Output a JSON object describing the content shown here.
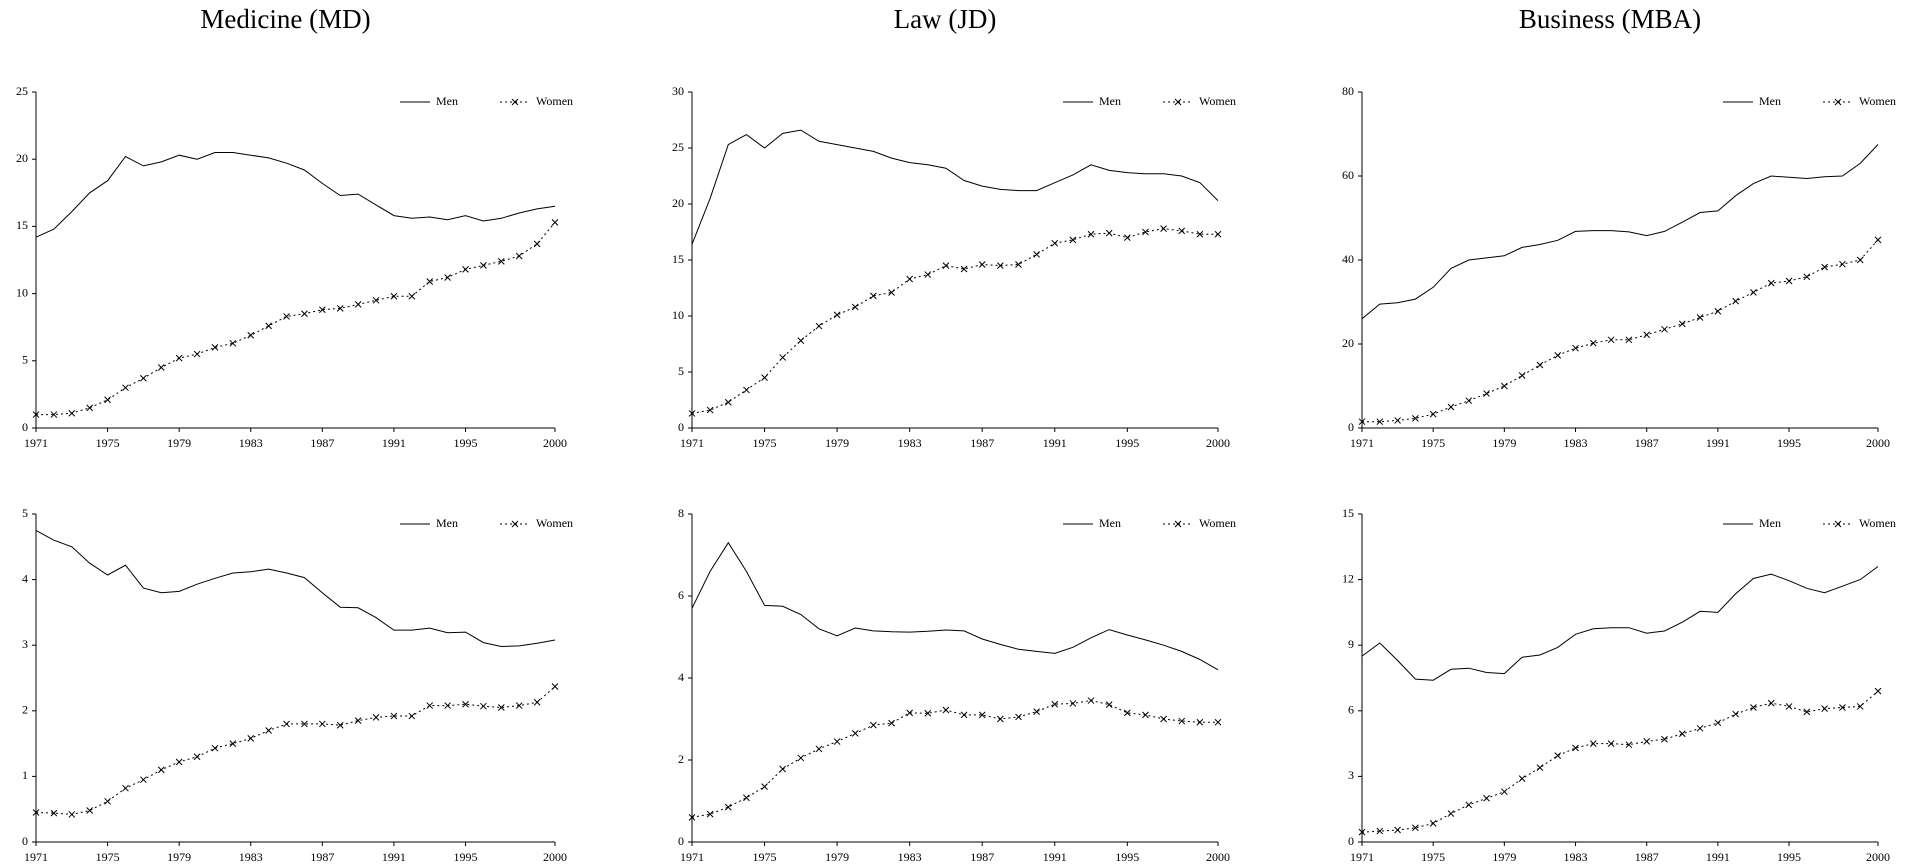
{
  "chart_data": [
    {
      "type": "line",
      "title": "Medicine (MD)",
      "x": [
        1971,
        1972,
        1973,
        1974,
        1975,
        1976,
        1977,
        1978,
        1979,
        1980,
        1981,
        1982,
        1983,
        1984,
        1985,
        1986,
        1987,
        1988,
        1989,
        1990,
        1991,
        1992,
        1993,
        1994,
        1995,
        1996,
        1997,
        1998,
        1999,
        2000
      ],
      "xlim": [
        1971,
        2000
      ],
      "xticks": [
        1971,
        1975,
        1979,
        1983,
        1987,
        1991,
        1995,
        2000
      ],
      "ylim": [
        0,
        25
      ],
      "yticks": [
        0,
        5,
        10,
        15,
        20,
        25
      ],
      "series": [
        {
          "name": "Men",
          "color": "#000000",
          "style": "solid",
          "values": [
            14.2,
            14.8,
            16.1,
            17.5,
            18.4,
            20.2,
            19.5,
            19.8,
            20.3,
            20.0,
            20.5,
            20.5,
            20.3,
            20.1,
            19.7,
            19.2,
            18.2,
            17.3,
            17.4,
            16.6,
            15.8,
            15.6,
            15.7,
            15.5,
            15.8,
            15.4,
            15.6,
            16.0,
            16.3,
            16.5
          ]
        },
        {
          "name": "Women",
          "color": "#000000",
          "style": "dotted",
          "marker": "x",
          "values": [
            1.0,
            1.0,
            1.1,
            1.5,
            2.1,
            3.0,
            3.7,
            4.5,
            5.2,
            5.5,
            6.0,
            6.3,
            6.9,
            7.6,
            8.3,
            8.5,
            8.8,
            8.9,
            9.2,
            9.5,
            9.8,
            9.8,
            10.9,
            11.2,
            11.8,
            12.1,
            12.4,
            12.8,
            13.7,
            15.3
          ]
        }
      ]
    },
    {
      "type": "line",
      "title": "Law (JD)",
      "x": [
        1971,
        1972,
        1973,
        1974,
        1975,
        1976,
        1977,
        1978,
        1979,
        1980,
        1981,
        1982,
        1983,
        1984,
        1985,
        1986,
        1987,
        1988,
        1989,
        1990,
        1991,
        1992,
        1993,
        1994,
        1995,
        1996,
        1997,
        1998,
        1999,
        2000
      ],
      "xlim": [
        1971,
        2000
      ],
      "xticks": [
        1971,
        1975,
        1979,
        1983,
        1987,
        1991,
        1995,
        2000
      ],
      "ylim": [
        0,
        30
      ],
      "yticks": [
        0,
        5,
        10,
        15,
        20,
        25,
        30
      ],
      "series": [
        {
          "name": "Men",
          "color": "#000000",
          "style": "solid",
          "values": [
            16.4,
            20.5,
            25.3,
            26.2,
            25.0,
            26.3,
            26.6,
            25.6,
            25.3,
            25.0,
            24.7,
            24.1,
            23.7,
            23.5,
            23.2,
            22.1,
            21.6,
            21.3,
            21.2,
            21.2,
            21.9,
            22.6,
            23.5,
            23.0,
            22.8,
            22.7,
            22.7,
            22.5,
            21.9,
            20.3
          ]
        },
        {
          "name": "Women",
          "color": "#000000",
          "style": "dotted",
          "marker": "x",
          "values": [
            1.3,
            1.6,
            2.3,
            3.4,
            4.5,
            6.3,
            7.8,
            9.1,
            10.1,
            10.8,
            11.8,
            12.1,
            13.3,
            13.7,
            14.5,
            14.2,
            14.6,
            14.5,
            14.6,
            15.5,
            16.5,
            16.8,
            17.3,
            17.4,
            17.0,
            17.5,
            17.8,
            17.6,
            17.3,
            17.3
          ]
        }
      ]
    },
    {
      "type": "line",
      "title": "Business (MBA)",
      "x": [
        1971,
        1972,
        1973,
        1974,
        1975,
        1976,
        1977,
        1978,
        1979,
        1980,
        1981,
        1982,
        1983,
        1984,
        1985,
        1986,
        1987,
        1988,
        1989,
        1990,
        1991,
        1992,
        1993,
        1994,
        1995,
        1996,
        1997,
        1998,
        1999,
        2000
      ],
      "xlim": [
        1971,
        2000
      ],
      "xticks": [
        1971,
        1975,
        1979,
        1983,
        1987,
        1991,
        1995,
        2000
      ],
      "ylim": [
        0,
        80
      ],
      "yticks": [
        0,
        20,
        40,
        60,
        80
      ],
      "series": [
        {
          "name": "Men",
          "color": "#000000",
          "style": "solid",
          "values": [
            26,
            29.5,
            29.8,
            30.7,
            33.5,
            38,
            40,
            40.5,
            41,
            43,
            43.7,
            44.7,
            46.8,
            47,
            47,
            46.7,
            45.8,
            46.8,
            49,
            51.3,
            51.7,
            55.3,
            58.2,
            60,
            59.7,
            59.4,
            59.8,
            60,
            63,
            67.5
          ]
        },
        {
          "name": "Women",
          "color": "#000000",
          "style": "dotted",
          "marker": "x",
          "values": [
            1.5,
            1.5,
            1.8,
            2.3,
            3.3,
            5,
            6.5,
            8.2,
            10,
            12.5,
            15,
            17.3,
            19,
            20.2,
            21,
            21,
            22.2,
            23.5,
            24.8,
            26.3,
            27.8,
            30.2,
            32.3,
            34.5,
            35,
            36,
            38.3,
            39,
            40,
            44.8
          ]
        }
      ]
    },
    {
      "type": "line",
      "x": [
        1971,
        1972,
        1973,
        1974,
        1975,
        1976,
        1977,
        1978,
        1979,
        1980,
        1981,
        1982,
        1983,
        1984,
        1985,
        1986,
        1987,
        1988,
        1989,
        1990,
        1991,
        1992,
        1993,
        1994,
        1995,
        1996,
        1997,
        1998,
        1999,
        2000
      ],
      "xlim": [
        1971,
        2000
      ],
      "xticks": [
        1971,
        1975,
        1979,
        1983,
        1987,
        1991,
        1995,
        2000
      ],
      "ylim": [
        0,
        5
      ],
      "yticks": [
        0,
        1,
        2,
        3,
        4,
        5
      ],
      "series": [
        {
          "name": "Men",
          "color": "#000000",
          "style": "solid",
          "values": [
            4.75,
            4.6,
            4.5,
            4.25,
            4.07,
            4.22,
            3.87,
            3.8,
            3.82,
            3.93,
            4.02,
            4.1,
            4.12,
            4.16,
            4.1,
            4.03,
            3.8,
            3.58,
            3.57,
            3.42,
            3.23,
            3.23,
            3.26,
            3.19,
            3.2,
            3.04,
            2.98,
            2.99,
            3.03,
            3.08
          ]
        },
        {
          "name": "Women",
          "color": "#000000",
          "style": "dotted",
          "marker": "x",
          "values": [
            0.45,
            0.44,
            0.42,
            0.48,
            0.62,
            0.82,
            0.95,
            1.1,
            1.22,
            1.3,
            1.43,
            1.5,
            1.58,
            1.7,
            1.8,
            1.8,
            1.8,
            1.78,
            1.85,
            1.9,
            1.92,
            1.92,
            2.08,
            2.08,
            2.1,
            2.07,
            2.05,
            2.08,
            2.13,
            2.37
          ]
        }
      ]
    },
    {
      "type": "line",
      "x": [
        1971,
        1972,
        1973,
        1974,
        1975,
        1976,
        1977,
        1978,
        1979,
        1980,
        1981,
        1982,
        1983,
        1984,
        1985,
        1986,
        1987,
        1988,
        1989,
        1990,
        1991,
        1992,
        1993,
        1994,
        1995,
        1996,
        1997,
        1998,
        1999,
        2000
      ],
      "xlim": [
        1971,
        2000
      ],
      "xticks": [
        1971,
        1975,
        1979,
        1983,
        1987,
        1991,
        1995,
        2000
      ],
      "ylim": [
        0,
        8
      ],
      "yticks": [
        0,
        2,
        4,
        6,
        8
      ],
      "series": [
        {
          "name": "Men",
          "color": "#000000",
          "style": "solid",
          "values": [
            5.7,
            6.6,
            7.3,
            6.6,
            5.77,
            5.75,
            5.55,
            5.2,
            5.03,
            5.22,
            5.15,
            5.13,
            5.12,
            5.14,
            5.17,
            5.15,
            4.95,
            4.82,
            4.7,
            4.65,
            4.6,
            4.75,
            4.98,
            5.18,
            5.05,
            4.93,
            4.8,
            4.65,
            4.45,
            4.2
          ]
        },
        {
          "name": "Women",
          "color": "#000000",
          "style": "dotted",
          "marker": "x",
          "values": [
            0.6,
            0.68,
            0.85,
            1.08,
            1.35,
            1.78,
            2.05,
            2.27,
            2.45,
            2.65,
            2.85,
            2.9,
            3.15,
            3.14,
            3.22,
            3.1,
            3.1,
            3.0,
            3.05,
            3.18,
            3.36,
            3.38,
            3.45,
            3.35,
            3.15,
            3.1,
            3.0,
            2.95,
            2.92,
            2.92
          ]
        }
      ]
    },
    {
      "type": "line",
      "x": [
        1971,
        1972,
        1973,
        1974,
        1975,
        1976,
        1977,
        1978,
        1979,
        1980,
        1981,
        1982,
        1983,
        1984,
        1985,
        1986,
        1987,
        1988,
        1989,
        1990,
        1991,
        1992,
        1993,
        1994,
        1995,
        1996,
        1997,
        1998,
        1999,
        2000
      ],
      "xlim": [
        1971,
        2000
      ],
      "xticks": [
        1971,
        1975,
        1979,
        1983,
        1987,
        1991,
        1995,
        2000
      ],
      "ylim": [
        0,
        15
      ],
      "yticks": [
        0,
        3,
        6,
        9,
        12,
        15
      ],
      "series": [
        {
          "name": "Men",
          "color": "#000000",
          "style": "solid",
          "values": [
            8.5,
            9.1,
            8.3,
            7.45,
            7.4,
            7.9,
            7.95,
            7.75,
            7.7,
            8.45,
            8.55,
            8.9,
            9.5,
            9.75,
            9.8,
            9.8,
            9.55,
            9.65,
            10.05,
            10.55,
            10.5,
            11.35,
            12.05,
            12.25,
            11.95,
            11.6,
            11.4,
            11.7,
            12.0,
            12.6
          ]
        },
        {
          "name": "Women",
          "color": "#000000",
          "style": "dotted",
          "marker": "x",
          "values": [
            0.45,
            0.5,
            0.55,
            0.65,
            0.85,
            1.3,
            1.7,
            2.0,
            2.3,
            2.9,
            3.4,
            3.95,
            4.3,
            4.5,
            4.5,
            4.45,
            4.6,
            4.7,
            4.95,
            5.2,
            5.45,
            5.85,
            6.15,
            6.35,
            6.2,
            5.95,
            6.1,
            6.15,
            6.2,
            6.9
          ]
        }
      ]
    }
  ]
}
